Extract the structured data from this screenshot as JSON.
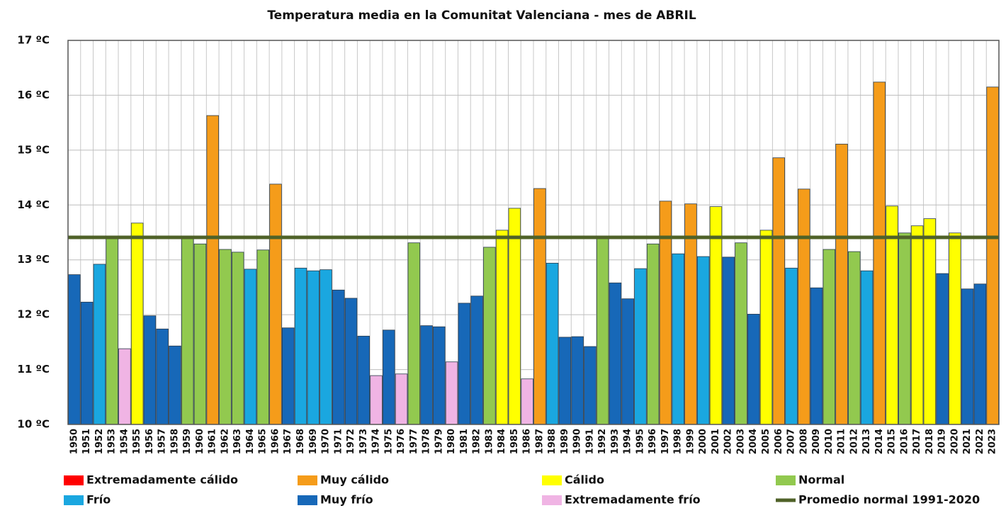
{
  "chart_data": {
    "type": "bar",
    "title": "Temperatura media en la Comunitat Valenciana - mes de ABRIL",
    "categories": [
      "1950",
      "1951",
      "1952",
      "1953",
      "1954",
      "1955",
      "1956",
      "1957",
      "1958",
      "1959",
      "1960",
      "1961",
      "1962",
      "1963",
      "1964",
      "1965",
      "1966",
      "1967",
      "1968",
      "1969",
      "1970",
      "1971",
      "1972",
      "1973",
      "1974",
      "1975",
      "1976",
      "1977",
      "1978",
      "1979",
      "1980",
      "1981",
      "1982",
      "1983",
      "1984",
      "1985",
      "1986",
      "1987",
      "1988",
      "1989",
      "1990",
      "1991",
      "1992",
      "1993",
      "1994",
      "1995",
      "1996",
      "1997",
      "1998",
      "1999",
      "2000",
      "2001",
      "2002",
      "2003",
      "2004",
      "2005",
      "2006",
      "2007",
      "2008",
      "2009",
      "2010",
      "2011",
      "2012",
      "2013",
      "2014",
      "2015",
      "2016",
      "2017",
      "2018",
      "2019",
      "2020",
      "2021",
      "2022",
      "2023"
    ],
    "series": [
      {
        "name": "Extremadamente cálido",
        "color": "#ff0000",
        "values": [
          null,
          null,
          null,
          null,
          null,
          null,
          null,
          null,
          null,
          null,
          null,
          null,
          null,
          null,
          null,
          null,
          null,
          null,
          null,
          null,
          null,
          null,
          null,
          null,
          null,
          null,
          null,
          null,
          null,
          null,
          null,
          null,
          null,
          null,
          null,
          null,
          null,
          null,
          null,
          null,
          null,
          null,
          null,
          null,
          null,
          null,
          null,
          null,
          null,
          null,
          null,
          null,
          null,
          null,
          null,
          null,
          null,
          null,
          null,
          null,
          null,
          null,
          null,
          null,
          null,
          null,
          null,
          null,
          null,
          null,
          null,
          null,
          null,
          null
        ]
      },
      {
        "name": "Muy cálido",
        "color": "#f59c1a",
        "values": [
          null,
          null,
          null,
          null,
          null,
          null,
          null,
          null,
          null,
          null,
          null,
          15.63,
          null,
          null,
          null,
          null,
          14.38,
          null,
          null,
          null,
          null,
          null,
          null,
          null,
          null,
          null,
          null,
          null,
          null,
          null,
          null,
          null,
          null,
          null,
          null,
          null,
          null,
          14.3,
          null,
          null,
          null,
          null,
          null,
          null,
          null,
          null,
          null,
          14.07,
          null,
          14.02,
          null,
          null,
          null,
          null,
          null,
          null,
          14.86,
          null,
          14.29,
          null,
          null,
          15.11,
          null,
          null,
          16.24,
          null,
          null,
          null,
          null,
          null,
          null,
          null,
          null,
          16.15
        ]
      },
      {
        "name": "Cálido",
        "color": "#ffff00",
        "values": [
          null,
          null,
          null,
          null,
          null,
          13.67,
          null,
          null,
          null,
          null,
          null,
          null,
          null,
          null,
          null,
          null,
          null,
          null,
          null,
          null,
          null,
          null,
          null,
          null,
          null,
          null,
          null,
          null,
          null,
          null,
          null,
          null,
          null,
          null,
          13.54,
          13.94,
          null,
          null,
          null,
          null,
          null,
          null,
          null,
          null,
          null,
          null,
          null,
          null,
          null,
          null,
          null,
          13.97,
          null,
          null,
          null,
          13.54,
          null,
          null,
          null,
          null,
          null,
          null,
          null,
          null,
          null,
          13.98,
          null,
          13.62,
          13.75,
          null,
          13.49,
          null,
          null,
          null
        ]
      },
      {
        "name": "Normal",
        "color": "#92c94f",
        "values": [
          null,
          null,
          null,
          13.41,
          null,
          null,
          null,
          null,
          null,
          13.4,
          13.29,
          null,
          13.19,
          13.14,
          null,
          13.18,
          null,
          null,
          null,
          null,
          null,
          null,
          null,
          null,
          null,
          null,
          null,
          13.31,
          null,
          null,
          null,
          null,
          null,
          13.23,
          null,
          null,
          null,
          null,
          null,
          null,
          null,
          null,
          13.41,
          null,
          null,
          null,
          13.29,
          null,
          null,
          null,
          null,
          null,
          null,
          13.31,
          null,
          null,
          null,
          null,
          null,
          null,
          13.19,
          null,
          13.15,
          null,
          null,
          null,
          13.49,
          null,
          null,
          null,
          null,
          null,
          null,
          null
        ]
      },
      {
        "name": "Frío",
        "color": "#1aa7e0",
        "values": [
          null,
          null,
          12.92,
          null,
          null,
          null,
          null,
          null,
          null,
          null,
          null,
          null,
          null,
          null,
          12.83,
          null,
          null,
          null,
          12.85,
          12.8,
          12.82,
          null,
          null,
          null,
          null,
          null,
          null,
          null,
          null,
          null,
          null,
          null,
          null,
          null,
          null,
          null,
          null,
          null,
          12.94,
          null,
          null,
          null,
          null,
          null,
          null,
          12.84,
          null,
          null,
          13.11,
          null,
          13.06,
          null,
          null,
          null,
          null,
          null,
          null,
          12.85,
          null,
          null,
          null,
          null,
          null,
          12.8,
          null,
          null,
          null,
          null,
          null,
          null,
          null,
          null,
          null,
          null
        ]
      },
      {
        "name": "Muy frío",
        "color": "#1768b8",
        "values": [
          12.73,
          12.23,
          null,
          null,
          null,
          null,
          11.98,
          11.74,
          11.43,
          null,
          null,
          null,
          null,
          null,
          null,
          null,
          null,
          11.76,
          null,
          null,
          null,
          12.45,
          12.3,
          11.61,
          null,
          11.72,
          null,
          null,
          11.8,
          11.78,
          null,
          12.21,
          12.34,
          null,
          null,
          null,
          null,
          null,
          null,
          11.59,
          11.6,
          11.42,
          null,
          12.58,
          12.29,
          null,
          null,
          null,
          null,
          null,
          null,
          null,
          13.05,
          null,
          12.01,
          null,
          null,
          null,
          null,
          12.49,
          null,
          null,
          null,
          null,
          null,
          null,
          null,
          null,
          null,
          12.75,
          null,
          12.47,
          12.56,
          null
        ]
      },
      {
        "name": "Extremadamente frío",
        "color": "#f0b4e4",
        "values": [
          null,
          null,
          null,
          null,
          11.38,
          null,
          null,
          null,
          null,
          null,
          null,
          null,
          null,
          null,
          null,
          null,
          null,
          null,
          null,
          null,
          null,
          null,
          null,
          null,
          10.89,
          null,
          10.92,
          null,
          null,
          null,
          11.14,
          null,
          null,
          null,
          null,
          null,
          10.83,
          null,
          null,
          null,
          null,
          null,
          null,
          null,
          null,
          null,
          null,
          null,
          null,
          null,
          null,
          null,
          null,
          null,
          null,
          null,
          null,
          null,
          null,
          null,
          null,
          null,
          null,
          null,
          null,
          null,
          null,
          null,
          null,
          null,
          null,
          null,
          null,
          null
        ]
      }
    ],
    "reference_line": {
      "name": "Promedio normal 1991-2020",
      "value": 13.41,
      "color": "#4f6228"
    },
    "ylim": [
      10,
      17
    ],
    "yticks": [
      {
        "value": 10,
        "label": "10 ºC"
      },
      {
        "value": 11,
        "label": "11 ºC"
      },
      {
        "value": 12,
        "label": "12 ºC"
      },
      {
        "value": 13,
        "label": "13 ºC"
      },
      {
        "value": 14,
        "label": "14 ºC"
      },
      {
        "value": 15,
        "label": "15 ºC"
      },
      {
        "value": 16,
        "label": "16 ºC"
      },
      {
        "value": 17,
        "label": "17 ºC"
      }
    ],
    "grid": true
  }
}
